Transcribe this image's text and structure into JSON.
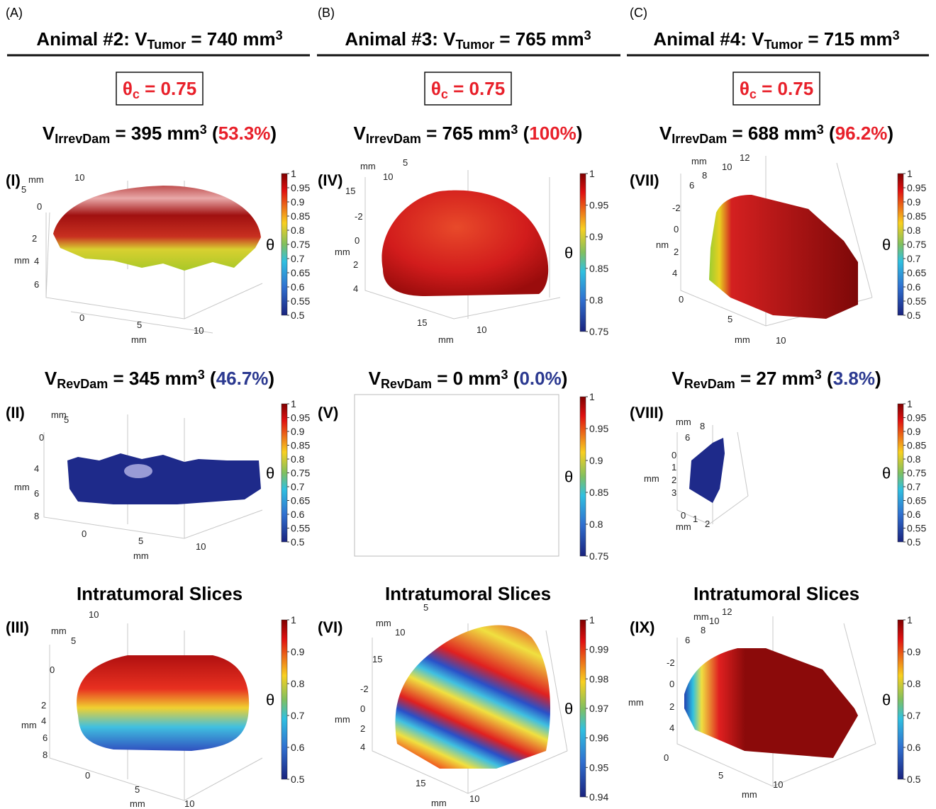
{
  "columns": [
    {
      "letter": "(A)",
      "title": {
        "pre": "Animal #2: V",
        "sub": "Tumor",
        "post": " = 740 mm",
        "sup": "3"
      },
      "theta_c": {
        "pre": "θ",
        "sub": "c",
        "post": " = 0.75"
      },
      "irrev": {
        "pre": "V",
        "sub": "IrrevDam",
        "post": " = 395 mm",
        "sup": "3",
        "open": " (",
        "pct": "53.3%",
        "close": ")"
      },
      "rev": {
        "pre": "V",
        "sub": "RevDam",
        "post": " = 345 mm",
        "sup": "3",
        "open": " (",
        "pct": "46.7%",
        "close": ")"
      },
      "slices_title": "Intratumoral Slices"
    },
    {
      "letter": "(B)",
      "title": {
        "pre": "Animal #3: V",
        "sub": "Tumor",
        "post": " = 765 mm",
        "sup": "3"
      },
      "theta_c": {
        "pre": "θ",
        "sub": "c",
        "post": " = 0.75"
      },
      "irrev": {
        "pre": "V",
        "sub": "IrrevDam",
        "post": " = 765 mm",
        "sup": "3",
        "open": " (",
        "pct": "100%",
        "close": ")"
      },
      "rev": {
        "pre": "V",
        "sub": "RevDam",
        "post": " = 0 mm",
        "sup": "3",
        "open": " (",
        "pct": "0.0%",
        "close": ")"
      },
      "slices_title": "Intratumoral Slices"
    },
    {
      "letter": "(C)",
      "title": {
        "pre": "Animal #4: V",
        "sub": "Tumor",
        "post": " = 715 mm",
        "sup": "3"
      },
      "theta_c": {
        "pre": "θ",
        "sub": "c",
        "post": " = 0.75"
      },
      "irrev": {
        "pre": "V",
        "sub": "IrrevDam",
        "post": " = 688 mm",
        "sup": "3",
        "open": " (",
        "pct": "96.2%",
        "close": ")"
      },
      "rev": {
        "pre": "V",
        "sub": "RevDam",
        "post": " = 27 mm",
        "sup": "3",
        "open": " (",
        "pct": "3.8%",
        "close": ")"
      },
      "slices_title": "Intratumoral Slices"
    }
  ],
  "panels": [
    {
      "label": "(I)",
      "colorbar_label": "θ",
      "colorbar_ticks": [
        "1",
        "0.95",
        "0.9",
        "0.85",
        "0.8",
        "0.75",
        "0.7",
        "0.65",
        "0.6",
        "0.55",
        "0.5"
      ],
      "axis_labels": [
        "mm",
        "10",
        "5",
        "0",
        "2",
        "mm",
        "4",
        "6",
        "0",
        "5",
        "10",
        "mm"
      ]
    },
    {
      "label": "(II)",
      "colorbar_label": "θ",
      "colorbar_ticks": [
        "1",
        "0.95",
        "0.9",
        "0.85",
        "0.8",
        "0.75",
        "0.7",
        "0.65",
        "0.6",
        "0.55",
        "0.5"
      ],
      "axis_labels": [
        "mm",
        "5",
        "0",
        "4",
        "mm",
        "6",
        "8",
        "0",
        "5",
        "10",
        "mm"
      ]
    },
    {
      "label": "(III)",
      "colorbar_label": "θ",
      "colorbar_ticks": [
        "1",
        "0.9",
        "0.8",
        "0.7",
        "0.6",
        "0.5"
      ],
      "axis_labels": [
        "10",
        "mm",
        "5",
        "0",
        "2",
        "mm",
        "4",
        "6",
        "8",
        "0",
        "5",
        "10",
        "mm"
      ]
    },
    {
      "label": "(IV)",
      "colorbar_label": "θ",
      "colorbar_ticks": [
        "1",
        "0.95",
        "0.9",
        "0.85",
        "0.8",
        "0.75"
      ],
      "axis_labels": [
        "mm",
        "5",
        "10",
        "15",
        "-2",
        "0",
        "mm",
        "2",
        "4",
        "15",
        "10",
        "mm"
      ]
    },
    {
      "label": "(V)",
      "colorbar_label": "θ",
      "colorbar_ticks": [
        "1",
        "0.95",
        "0.9",
        "0.85",
        "0.8",
        "0.75"
      ],
      "axis_labels": []
    },
    {
      "label": "(VI)",
      "colorbar_label": "θ",
      "colorbar_ticks": [
        "1",
        "0.99",
        "0.98",
        "0.97",
        "0.96",
        "0.95",
        "0.94"
      ],
      "axis_labels": [
        "5",
        "mm",
        "10",
        "15",
        "-2",
        "0",
        "mm",
        "2",
        "4",
        "15",
        "10",
        "mm"
      ]
    },
    {
      "label": "(VII)",
      "colorbar_label": "θ",
      "colorbar_ticks": [
        "1",
        "0.95",
        "0.9",
        "0.85",
        "0.8",
        "0.75",
        "0.7",
        "0.65",
        "0.6",
        "0.55",
        "0.5"
      ],
      "axis_labels": [
        "mm",
        "12",
        "10",
        "8",
        "6",
        "-2",
        "0",
        "nm",
        "2",
        "4",
        "0",
        "5",
        "10",
        "mm"
      ]
    },
    {
      "label": "(VIII)",
      "colorbar_label": "θ",
      "colorbar_ticks": [
        "1",
        "0.95",
        "0.9",
        "0.85",
        "0.8",
        "0.75",
        "0.7",
        "0.65",
        "0.6",
        "0.55",
        "0.5"
      ],
      "axis_labels": [
        "mm",
        "8",
        "6",
        "0",
        "1",
        "mm",
        "2",
        "3",
        "0",
        "1",
        "2",
        "mm"
      ]
    },
    {
      "label": "(IX)",
      "colorbar_label": "θ",
      "colorbar_ticks": [
        "1",
        "0.9",
        "0.8",
        "0.7",
        "0.6",
        "0.5"
      ],
      "axis_labels": [
        "12",
        "mm",
        "10",
        "8",
        "6",
        "-2",
        "0",
        "mm",
        "2",
        "4",
        "0",
        "5",
        "10",
        "mm"
      ]
    }
  ]
}
